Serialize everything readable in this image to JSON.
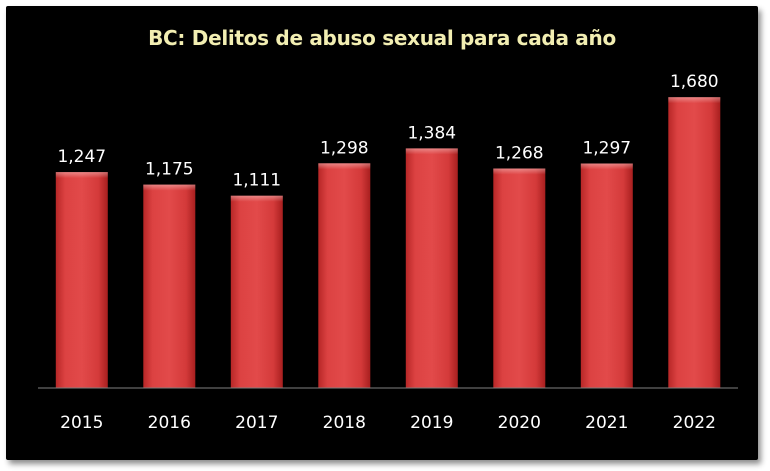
{
  "chart_data": {
    "type": "bar",
    "title": "BC: Delitos de abuso sexual para cada año",
    "xlabel": "",
    "ylabel": "",
    "categories": [
      "2015",
      "2016",
      "2017",
      "2018",
      "2019",
      "2020",
      "2021",
      "2022"
    ],
    "values": [
      1247,
      1175,
      1111,
      1298,
      1384,
      1268,
      1297,
      1680
    ],
    "value_labels": [
      "1,247",
      "1,175",
      "1,111",
      "1,298",
      "1,384",
      "1,268",
      "1,297",
      "1,680"
    ],
    "ylim": [
      0,
      1800
    ],
    "grid": false,
    "legend": "none",
    "colors": {
      "background": "#000000",
      "bar": "#d63a3a",
      "title": "#f2eeb2",
      "label": "#ffffff",
      "axis": "#7f7f7f"
    }
  }
}
